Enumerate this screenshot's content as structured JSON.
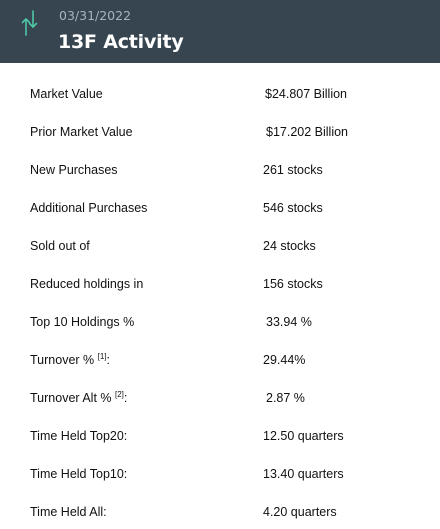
{
  "header": {
    "date": "03/31/2022",
    "title": "13F Activity",
    "icon": "up-down-arrows-icon",
    "colors": {
      "background": "#36454f",
      "icon": "#4fc6a6",
      "date": "#aab3ba"
    }
  },
  "rows": [
    {
      "label": "Market Value",
      "value": "$24.807 Billion"
    },
    {
      "label": "Prior Market Value",
      "value": "$17.202 Billion"
    },
    {
      "label": "New Purchases",
      "value": "261 stocks"
    },
    {
      "label": "Additional Purchases",
      "value": "546 stocks"
    },
    {
      "label": "Sold out of",
      "value": "24 stocks"
    },
    {
      "label": "Reduced holdings in",
      "value": "156 stocks"
    },
    {
      "label": "Top 10 Holdings %",
      "value": "33.94 %"
    },
    {
      "label": "Turnover %",
      "footnote": "[1]",
      "suffix": ":",
      "value": "29.44%"
    },
    {
      "label": "Turnover Alt %",
      "footnote": "[2]",
      "suffix": ":",
      "value": "2.87 %"
    },
    {
      "label": "Time Held Top20:",
      "value": "12.50 quarters"
    },
    {
      "label": "Time Held Top10:",
      "value": "13.40 quarters"
    },
    {
      "label": "Time Held All:",
      "value": "4.20 quarters"
    }
  ]
}
